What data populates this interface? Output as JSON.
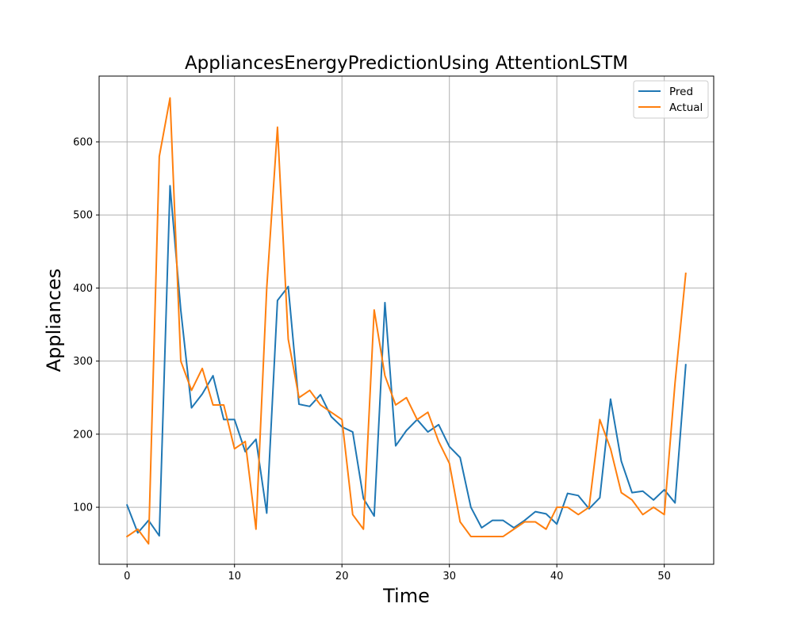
{
  "chart_data": {
    "type": "line",
    "title": "AppliancesEnergyPredictionUsing AttentionLSTM",
    "xlabel": "Time",
    "ylabel": "Appliances",
    "xlim": [
      -2.6,
      54.6
    ],
    "ylim": [
      22,
      690
    ],
    "xticks": [
      0,
      10,
      20,
      30,
      40,
      50
    ],
    "yticks": [
      100,
      200,
      300,
      400,
      500,
      600
    ],
    "grid": true,
    "legend_position": "top-right",
    "x": [
      0,
      1,
      2,
      3,
      4,
      5,
      6,
      7,
      8,
      9,
      10,
      11,
      12,
      13,
      14,
      15,
      16,
      17,
      18,
      19,
      20,
      21,
      22,
      23,
      24,
      25,
      26,
      27,
      28,
      29,
      30,
      31,
      32,
      33,
      34,
      35,
      36,
      37,
      38,
      39,
      40,
      41,
      42,
      43,
      44,
      45,
      46,
      47,
      48,
      49,
      50,
      51,
      52
    ],
    "series": [
      {
        "name": "Pred",
        "color": "#1f77b4",
        "values": [
          103,
          65,
          82,
          61,
          540,
          370,
          236,
          255,
          280,
          220,
          220,
          176,
          193,
          92,
          383,
          402,
          241,
          238,
          254,
          224,
          210,
          203,
          112,
          88,
          380,
          184,
          205,
          220,
          203,
          213,
          183,
          168,
          100,
          72,
          82,
          82,
          72,
          82,
          94,
          91,
          77,
          119,
          116,
          98,
          113,
          248,
          163,
          120,
          122,
          110,
          124,
          106,
          295
        ]
      },
      {
        "name": "Actual",
        "color": "#ff7f0e",
        "values": [
          60,
          70,
          50,
          580,
          660,
          300,
          260,
          290,
          240,
          240,
          180,
          190,
          70,
          400,
          620,
          330,
          250,
          260,
          240,
          230,
          220,
          90,
          70,
          370,
          280,
          240,
          250,
          220,
          230,
          190,
          160,
          80,
          60,
          60,
          60,
          60,
          70,
          80,
          80,
          70,
          100,
          100,
          90,
          100,
          220,
          180,
          120,
          110,
          90,
          100,
          90,
          270,
          420
        ]
      }
    ]
  }
}
